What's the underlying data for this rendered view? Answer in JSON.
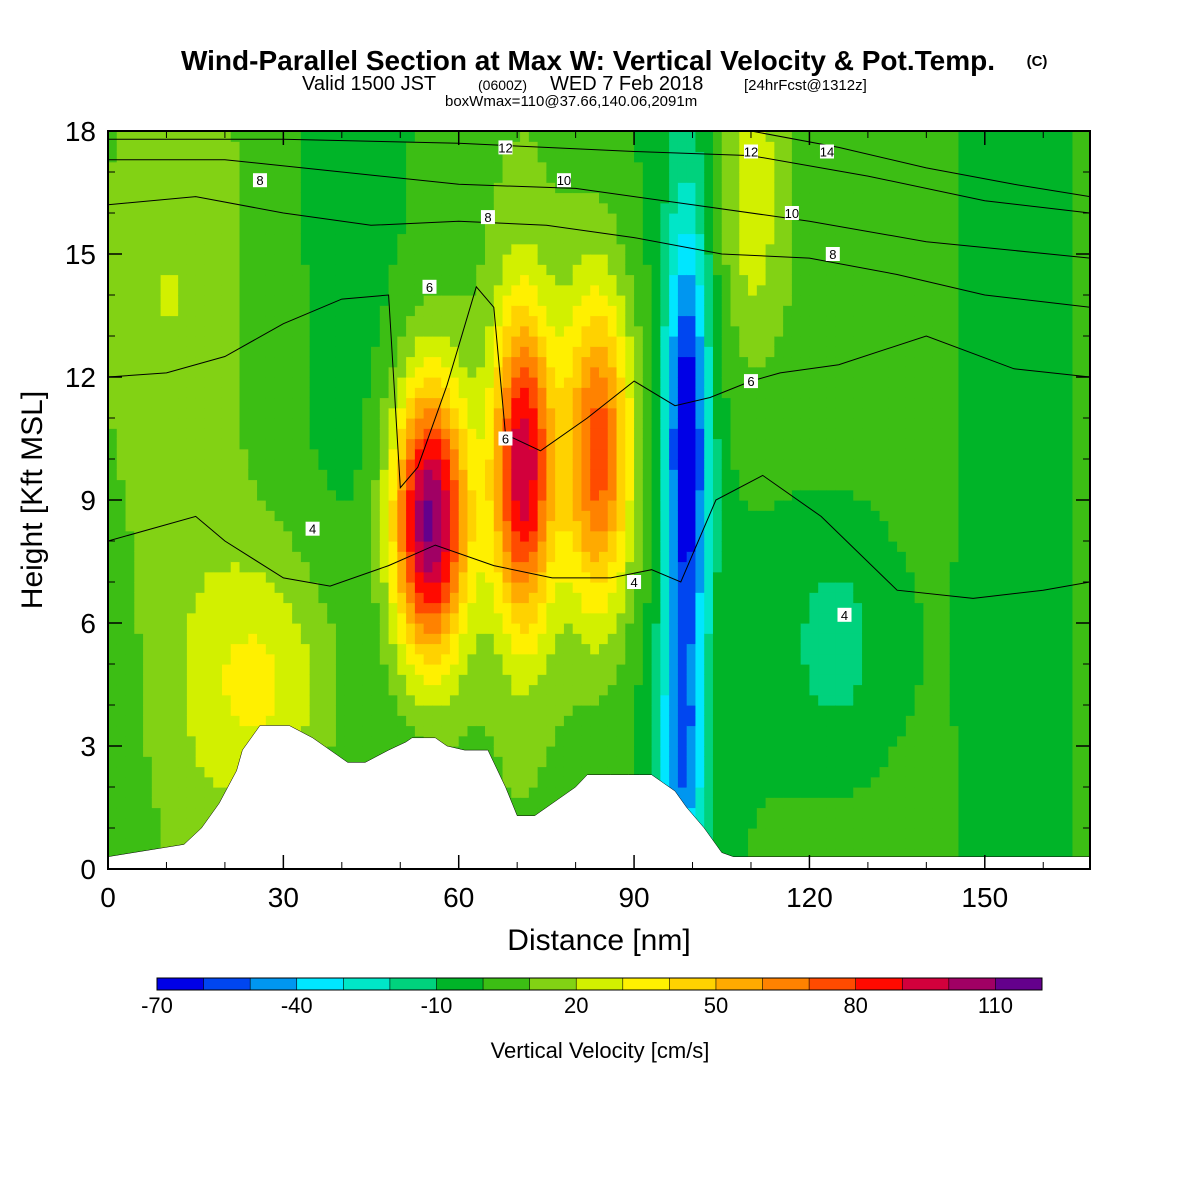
{
  "header": {
    "title": "Wind-Parallel Section at Max W: Vertical Velocity & Pot.Temp.",
    "copyright": "(C)",
    "valid_a": "Valid 1500 JST",
    "valid_utc": "(0600Z)",
    "valid_b": "WED 7 Feb 2018",
    "forecast": "[24hrFcst@1312z]",
    "box_info": "boxWmax=110@37.66,140.06,2091m"
  },
  "chart_data": {
    "type": "heatmap",
    "title": "Wind-Parallel Section at Max W: Vertical Velocity & Pot.Temp.",
    "xlabel": "Distance [nm]",
    "ylabel": "Height [Kft MSL]",
    "xlim": [
      0,
      168
    ],
    "ylim": [
      0,
      18
    ],
    "x_ticks": [
      0,
      30,
      60,
      90,
      120,
      150
    ],
    "y_ticks": [
      0,
      3,
      6,
      9,
      12,
      15,
      18
    ],
    "colorbar": {
      "label": "Vertical Velocity [cm/s]",
      "min": -70,
      "step": 10,
      "tick_labels": [
        -70,
        -40,
        -10,
        20,
        50,
        80,
        110
      ],
      "colors": [
        "#0000e6",
        "#0046f0",
        "#0096f0",
        "#00e6ff",
        "#00e6c8",
        "#00d27d",
        "#00b428",
        "#3cbe14",
        "#82d214",
        "#d2f000",
        "#fff000",
        "#ffd200",
        "#ffaa00",
        "#ff8200",
        "#ff4b00",
        "#ff0a00",
        "#d2003c",
        "#a00064",
        "#64008c"
      ]
    },
    "w_field": {
      "background": 0,
      "cells": [
        {
          "x": 55,
          "z": 8.5,
          "peak": 110
        },
        {
          "x": 71,
          "z": 9.8,
          "peak": 90
        },
        {
          "x": 84,
          "z": 10.2,
          "peak": 72
        },
        {
          "x": 99,
          "z": 10.2,
          "peak": -70
        },
        {
          "x": 27,
          "z": 4.5,
          "peak": 28
        },
        {
          "x": 8,
          "z": 14.0,
          "peak": 12
        },
        {
          "x": 125,
          "z": 5.5,
          "peak": -22
        },
        {
          "x": 110,
          "z": 16.5,
          "peak": 26
        },
        {
          "x": 98,
          "z": 2.5,
          "peak": -40
        }
      ]
    },
    "terrain": {
      "x": [
        0,
        13,
        16,
        19,
        22,
        23,
        26,
        29,
        31,
        35,
        37,
        41,
        44,
        48,
        51,
        52,
        56,
        58,
        61,
        65,
        68,
        70,
        73,
        77,
        80,
        82,
        86,
        89,
        91,
        93,
        95,
        97,
        99,
        102,
        105,
        107,
        168
      ],
      "z": [
        0.3,
        0.6,
        1.0,
        1.6,
        2.4,
        2.9,
        3.5,
        3.5,
        3.5,
        3.2,
        3.0,
        2.6,
        2.6,
        2.9,
        3.1,
        3.2,
        3.2,
        3.0,
        2.9,
        2.9,
        2.0,
        1.3,
        1.3,
        1.7,
        2.0,
        2.3,
        2.3,
        2.3,
        2.3,
        2.3,
        2.1,
        1.9,
        1.5,
        1.0,
        0.4,
        0.3,
        0.3
      ]
    },
    "theta_contours": [
      {
        "label": "4",
        "x": [
          0,
          15,
          20,
          30,
          38,
          48,
          56,
          66,
          76,
          86,
          93,
          98,
          104,
          112,
          122,
          135,
          148,
          160,
          168
        ],
        "z": [
          8.0,
          8.6,
          8.0,
          7.1,
          6.9,
          7.4,
          7.9,
          7.4,
          7.1,
          7.1,
          7.3,
          7.0,
          9.0,
          9.6,
          8.6,
          6.8,
          6.6,
          6.8,
          7.0
        ],
        "labels_at": [
          [
            35,
            8.3
          ],
          [
            90,
            7.0
          ],
          [
            126,
            6.2
          ]
        ]
      },
      {
        "label": "6",
        "x": [
          0,
          10,
          20,
          30,
          40,
          48,
          50,
          53,
          58,
          63,
          66,
          68,
          74,
          82,
          90,
          97,
          103,
          110,
          115,
          125,
          140,
          155,
          168
        ],
        "z": [
          12.0,
          12.1,
          12.5,
          13.3,
          13.9,
          14.0,
          9.3,
          9.8,
          11.8,
          14.2,
          13.7,
          10.6,
          10.2,
          11.0,
          11.9,
          11.3,
          11.5,
          11.9,
          12.1,
          12.3,
          13.0,
          12.2,
          12.0
        ],
        "labels_at": [
          [
            55,
            14.2
          ],
          [
            68,
            10.5
          ],
          [
            110,
            11.9
          ]
        ]
      },
      {
        "label": "8",
        "x": [
          0,
          15,
          30,
          45,
          60,
          75,
          90,
          105,
          120,
          135,
          150,
          168
        ],
        "z": [
          16.2,
          16.4,
          16.0,
          15.7,
          15.8,
          15.7,
          15.4,
          15.0,
          14.9,
          14.5,
          14.0,
          13.7
        ],
        "labels_at": [
          [
            26,
            16.8
          ],
          [
            65,
            15.9
          ],
          [
            124,
            15.0
          ]
        ]
      },
      {
        "label": "10",
        "x": [
          0,
          20,
          40,
          60,
          80,
          100,
          120,
          140,
          168
        ],
        "z": [
          17.3,
          17.3,
          17.0,
          16.7,
          16.6,
          16.2,
          15.8,
          15.3,
          14.9
        ],
        "labels_at": [
          [
            78,
            16.8
          ],
          [
            117,
            16.0
          ]
        ]
      },
      {
        "label": "12",
        "x": [
          0,
          30,
          60,
          90,
          110,
          130,
          150,
          168
        ],
        "z": [
          17.8,
          17.8,
          17.7,
          17.5,
          17.4,
          16.9,
          16.3,
          16.0
        ],
        "labels_at": [
          [
            68,
            17.6
          ],
          [
            110,
            17.5
          ]
        ]
      },
      {
        "label": "14",
        "x": [
          110,
          125,
          140,
          155,
          168
        ],
        "z": [
          18.0,
          17.6,
          17.1,
          16.7,
          16.4
        ],
        "labels_at": [
          [
            123,
            17.5
          ]
        ]
      }
    ]
  }
}
